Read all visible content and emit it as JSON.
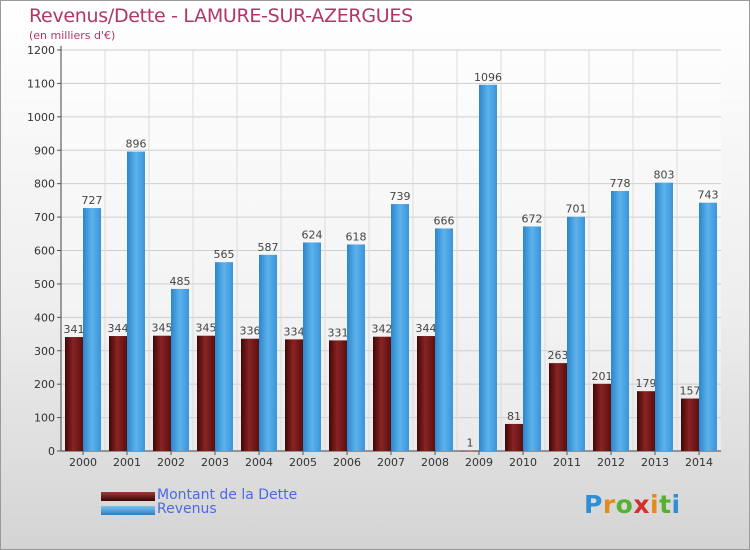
{
  "chart_data": {
    "type": "bar",
    "title": "Revenus/Dette - LAMURE-SUR-AZERGUES",
    "subtitle": "(en milliers d'€)",
    "categories": [
      "2000",
      "2001",
      "2002",
      "2003",
      "2004",
      "2005",
      "2006",
      "2007",
      "2008",
      "2009",
      "2010",
      "2011",
      "2012",
      "2013",
      "2014"
    ],
    "series": [
      {
        "name": "Montant de la Dette",
        "color": "#7a1818",
        "values": [
          341,
          344,
          345,
          345,
          336,
          334,
          331,
          342,
          344,
          1,
          81,
          263,
          201,
          179,
          157
        ]
      },
      {
        "name": "Revenus",
        "color": "#3e9ad9",
        "values": [
          727,
          896,
          485,
          565,
          587,
          624,
          618,
          739,
          666,
          1096,
          672,
          701,
          778,
          803,
          743
        ]
      }
    ],
    "yticks": [
      0,
      100,
      200,
      300,
      400,
      500,
      600,
      700,
      800,
      900,
      1000,
      1100,
      1200
    ],
    "ylim": [
      0,
      1200
    ],
    "grid": true,
    "legend_position": "bottom-left"
  },
  "legend": {
    "items": [
      {
        "label": "Montant de la Dette",
        "color": "#7a1818"
      },
      {
        "label": "Revenus",
        "color": "#3e9ad9"
      }
    ]
  },
  "logo": {
    "letters": [
      "P",
      "r",
      "o",
      "x",
      "i",
      "t",
      "i"
    ],
    "colors": [
      "#2e8fd6",
      "#e38b1c",
      "#56b031",
      "#d0312d",
      "#e38b1c",
      "#56b031",
      "#2e8fd6"
    ]
  }
}
